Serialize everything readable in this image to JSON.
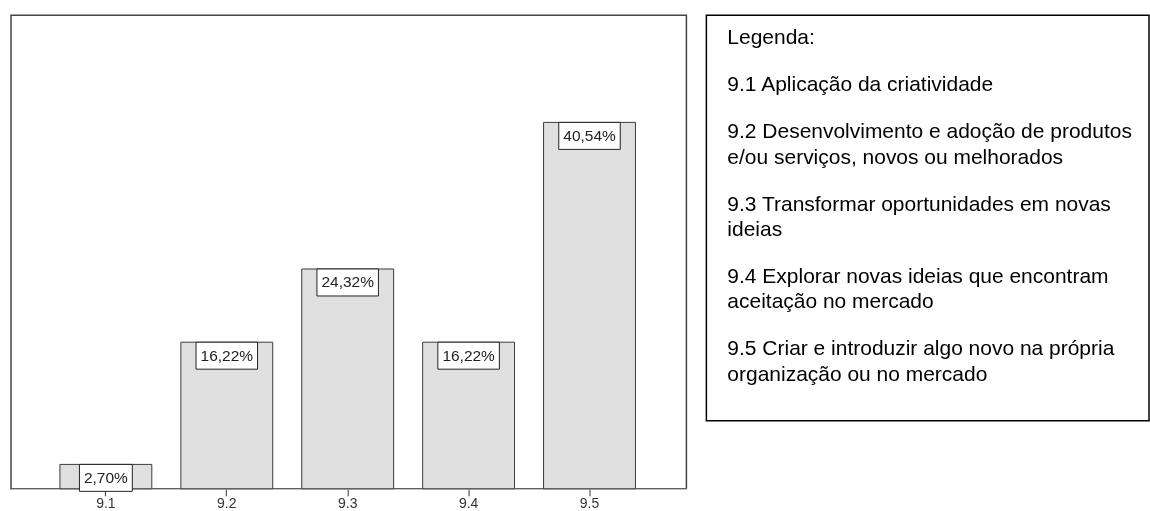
{
  "chart_data": {
    "type": "bar",
    "categories": [
      "9.1",
      "9.2",
      "9.3",
      "9.4",
      "9.5"
    ],
    "values": [
      2.7,
      16.22,
      24.32,
      16.22,
      40.54
    ],
    "color": "#e0e0e0",
    "value_labels": [
      "2,70%",
      "16,22%",
      "24,32%",
      "16,22%",
      "40,54%"
    ],
    "ylim": [
      0,
      52.4
    ],
    "tick_labels": "x",
    "annotations": [
      "Legenda:",
      "9.1 Aplicação da criatividade",
      "9.2 Desenvolvimento e adoção de produtos e/ou serviços, novos ou melhorados",
      "9.3 Transformar oportunidades em novas ideias",
      "9.4 Explorar novas ideias que encontram aceitação no mercado",
      "9.5 Criar e introduzir algo novo na própria organização ou no mercado"
    ]
  }
}
